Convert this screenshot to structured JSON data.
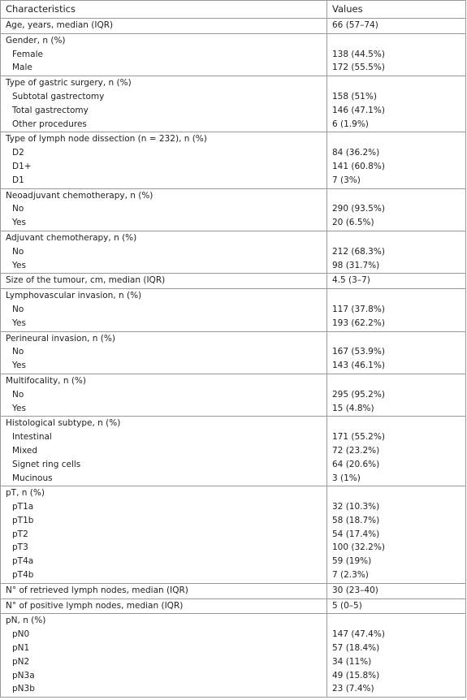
{
  "table": {
    "header": [
      "Characteristics",
      "Values"
    ],
    "groups": [
      {
        "label": "Age, years, median (IQR)",
        "value": "66 (57–74)"
      },
      {
        "label": "Gender, n (%)",
        "rows": [
          [
            "Female",
            "138 (44.5%)"
          ],
          [
            "Male",
            "172 (55.5%)"
          ]
        ]
      },
      {
        "label": "Type of gastric surgery, n (%)",
        "rows": [
          [
            "Subtotal gastrectomy",
            "158 (51%)"
          ],
          [
            "Total gastrectomy",
            "146 (47.1%)"
          ],
          [
            "Other procedures",
            "6 (1.9%)"
          ]
        ]
      },
      {
        "label": "Type of lymph node dissection (n = 232), n (%)",
        "rows": [
          [
            "D2",
            "84 (36.2%)"
          ],
          [
            "D1+",
            "141 (60.8%)"
          ],
          [
            "D1",
            "7 (3%)"
          ]
        ]
      },
      {
        "label": "Neoadjuvant chemotherapy, n (%)",
        "rows": [
          [
            "No",
            "290 (93.5%)"
          ],
          [
            "Yes",
            "20 (6.5%)"
          ]
        ]
      },
      {
        "label": "Adjuvant chemotherapy, n (%)",
        "rows": [
          [
            "No",
            "212 (68.3%)"
          ],
          [
            "Yes",
            "98 (31.7%)"
          ]
        ]
      },
      {
        "label": "Size of the tumour, cm, median (IQR)",
        "value": "4.5 (3–7)"
      },
      {
        "label": "Lymphovascular invasion, n (%)",
        "rows": [
          [
            "No",
            "117 (37.8%)"
          ],
          [
            "Yes",
            "193 (62.2%)"
          ]
        ]
      },
      {
        "label": "Perineural invasion, n (%)",
        "rows": [
          [
            "No",
            "167 (53.9%)"
          ],
          [
            "Yes",
            "143 (46.1%)"
          ]
        ]
      },
      {
        "label": "Multifocality, n (%)",
        "rows": [
          [
            "No",
            "295 (95.2%)"
          ],
          [
            "Yes",
            "15 (4.8%)"
          ]
        ]
      },
      {
        "label": "Histological subtype, n (%)",
        "rows": [
          [
            "Intestinal",
            "171 (55.2%)"
          ],
          [
            "Mixed",
            "72 (23.2%)"
          ],
          [
            "Signet ring cells",
            "64 (20.6%)"
          ],
          [
            "Mucinous",
            "3 (1%)"
          ]
        ]
      },
      {
        "label": "pT, n (%)",
        "rows": [
          [
            "pT1a",
            "32 (10.3%)"
          ],
          [
            "pT1b",
            "58 (18.7%)"
          ],
          [
            "pT2",
            "54 (17.4%)"
          ],
          [
            "pT3",
            "100 (32.2%)"
          ],
          [
            "pT4a",
            "59 (19%)"
          ],
          [
            "pT4b",
            "7 (2.3%)"
          ]
        ]
      },
      {
        "label": "N° of retrieved lymph nodes, median (IQR)",
        "value": "30 (23–40)"
      },
      {
        "label": "N° of positive lymph nodes, median (IQR)",
        "value": "5 (0–5)"
      },
      {
        "label": "pN, n (%)",
        "rows": [
          [
            "pN0",
            "147 (47.4%)"
          ],
          [
            "pN1",
            "57 (18.4%)"
          ],
          [
            "pN2",
            "34 (11%)"
          ],
          [
            "pN3a",
            "49 (15.8%)"
          ],
          [
            "pN3b",
            "23 (7.4%)"
          ]
        ]
      }
    ]
  }
}
